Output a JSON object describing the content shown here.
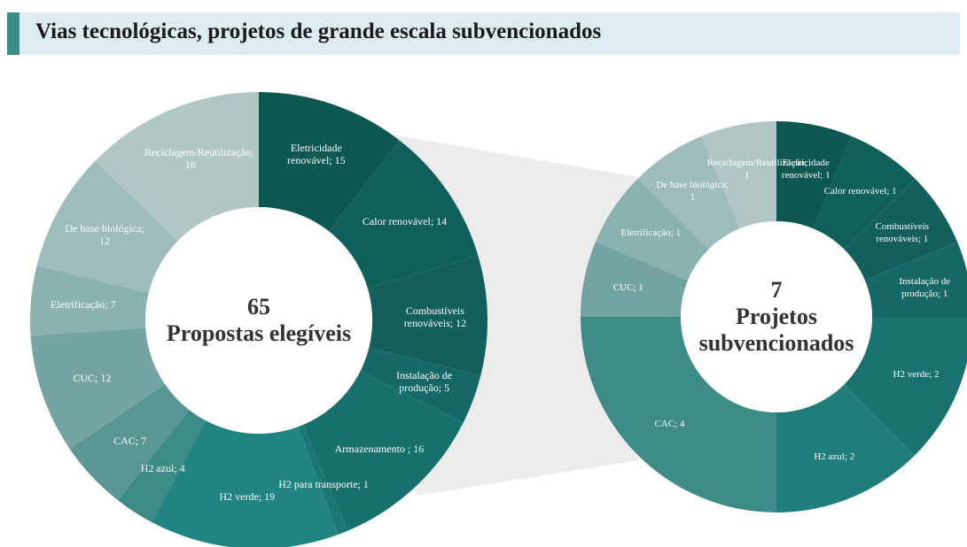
{
  "title": "Vias tecnológicas, projetos de grande escala subvencionados",
  "chart_data": [
    {
      "type": "donut",
      "center_value": 65,
      "center_label": "Propostas elegíveis",
      "values": [
        15,
        14,
        12,
        5,
        16,
        1,
        19,
        4,
        7,
        12,
        7,
        12,
        18
      ],
      "value_labels": [
        "Eletricidade renovável; 15",
        "Calor renovável; 14",
        "Combustíveis renováveis; 12",
        "Instalação de produção; 5",
        "Armazenamento ; 16",
        "H2 para transporte; 1",
        "H2 verde; 19",
        "H2 azul; 4",
        "CAC; 7",
        "CUC; 12",
        "Eletrificação; 7",
        "De base biológica; 12",
        "Reciclagem/Reutilização; 18"
      ],
      "colors": [
        "#0d5753",
        "#0f5f5b",
        "#125f5c",
        "#156865",
        "#18706c",
        "#1b7772",
        "#218480",
        "#3d8b87",
        "#5a9794",
        "#74a4a2",
        "#8ab2b0",
        "#9ebcbb",
        "#b1c7c6"
      ]
    },
    {
      "type": "donut",
      "center_value": 7,
      "center_label": "Projetos subvencionados",
      "values": [
        1,
        1,
        1,
        1,
        2,
        2,
        4,
        1,
        1,
        1,
        1
      ],
      "value_labels": [
        "Eletricidade renovável; 1",
        "Calor renovável; 1",
        "Combustíveis renováveis; 1",
        "Instalação de produção; 1",
        "H2 verde; 2",
        "H2 azul; 2",
        "CAC; 4",
        "CUC; 1",
        "Eletrificação; 1",
        "De base biológica; 1",
        "Reciclagem/Reutilização; 1"
      ],
      "colors": [
        "#0d5753",
        "#0f5f5b",
        "#125f5c",
        "#156865",
        "#1a726e",
        "#1f7e79",
        "#3e8c88",
        "#74a4a2",
        "#8ab2b0",
        "#9ebcbb",
        "#b1c7c6"
      ]
    }
  ]
}
